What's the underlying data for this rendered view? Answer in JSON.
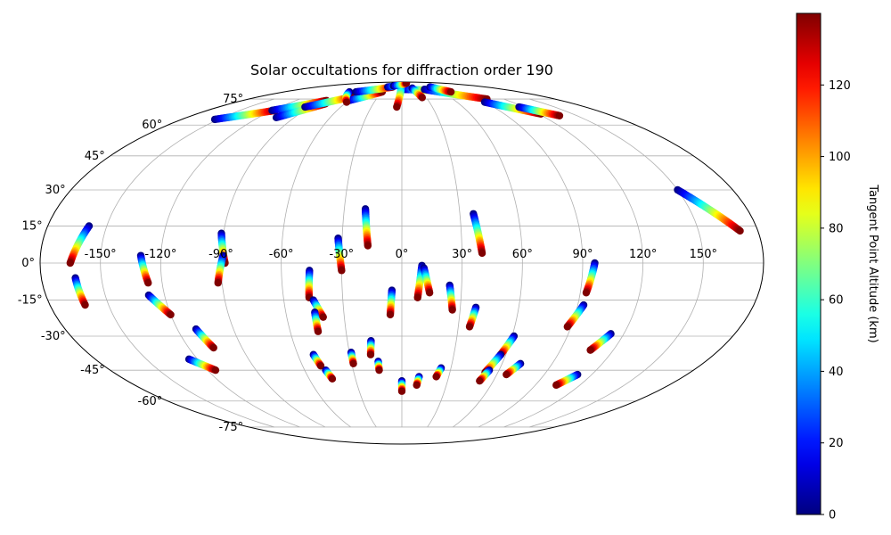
{
  "chart_data": {
    "type": "scatter",
    "projection": "mollweide",
    "title": "Solar occultations for diffraction order 190",
    "grid": true,
    "longitude_ticks": [
      {
        "value": -150,
        "label": "-150°"
      },
      {
        "value": -120,
        "label": "-120°"
      },
      {
        "value": -90,
        "label": "-90°"
      },
      {
        "value": -60,
        "label": "-60°"
      },
      {
        "value": -30,
        "label": "-30°"
      },
      {
        "value": 0,
        "label": "0°"
      },
      {
        "value": 30,
        "label": "30°"
      },
      {
        "value": 60,
        "label": "60°"
      },
      {
        "value": 90,
        "label": "90°"
      },
      {
        "value": 120,
        "label": "120°"
      },
      {
        "value": 150,
        "label": "150°"
      }
    ],
    "latitude_ticks": [
      {
        "value": 75,
        "label": "75°"
      },
      {
        "value": 60,
        "label": "60°"
      },
      {
        "value": 45,
        "label": "45°"
      },
      {
        "value": 30,
        "label": "30°"
      },
      {
        "value": 15,
        "label": "15°"
      },
      {
        "value": 0,
        "label": "0°"
      },
      {
        "value": -15,
        "label": "-15°"
      },
      {
        "value": -30,
        "label": "-30°"
      },
      {
        "value": -45,
        "label": "-45°"
      },
      {
        "value": -60,
        "label": "-60°"
      },
      {
        "value": -75,
        "label": "-75°"
      }
    ],
    "colorbar": {
      "label": "Tangent Point Altitude (km)",
      "colormap": "jet",
      "range": [
        0,
        140
      ],
      "ticks": [
        {
          "value": 0,
          "label": "0"
        },
        {
          "value": 20,
          "label": "20"
        },
        {
          "value": 40,
          "label": "40"
        },
        {
          "value": 60,
          "label": "60"
        },
        {
          "value": 80,
          "label": "80"
        },
        {
          "value": 100,
          "label": "100"
        },
        {
          "value": 120,
          "label": "120"
        }
      ]
    },
    "tracks": [
      {
        "start": [
          -159,
          15
        ],
        "end": [
          -165,
          0
        ]
      },
      {
        "start": [
          -163,
          -6
        ],
        "end": [
          -162,
          -17
        ]
      },
      {
        "start": [
          -130,
          3
        ],
        "end": [
          -127,
          -8
        ]
      },
      {
        "start": [
          -128,
          -13
        ],
        "end": [
          -120,
          -21
        ]
      },
      {
        "start": [
          -110,
          -27
        ],
        "end": [
          -106,
          -35
        ]
      },
      {
        "start": [
          -125,
          -40
        ],
        "end": [
          -115,
          -45
        ]
      },
      {
        "start": [
          -91,
          12
        ],
        "end": [
          -88,
          0
        ]
      },
      {
        "start": [
          -89,
          3
        ],
        "end": [
          -92,
          -8
        ]
      },
      {
        "start": [
          -32,
          10
        ],
        "end": [
          -30,
          -3
        ]
      },
      {
        "start": [
          -19,
          22
        ],
        "end": [
          -17,
          7
        ]
      },
      {
        "start": [
          -46,
          -3
        ],
        "end": [
          -47,
          -14
        ]
      },
      {
        "start": [
          -45,
          -15
        ],
        "end": [
          -41,
          -22
        ]
      },
      {
        "start": [
          -45,
          -20
        ],
        "end": [
          -45,
          -28
        ]
      },
      {
        "start": [
          -51,
          -38
        ],
        "end": [
          -49,
          -43
        ]
      },
      {
        "start": [
          -47,
          -45
        ],
        "end": [
          -45,
          -49
        ]
      },
      {
        "start": [
          -29,
          -37
        ],
        "end": [
          -29,
          -42
        ]
      },
      {
        "start": [
          -17,
          -32
        ],
        "end": [
          -18,
          -38
        ]
      },
      {
        "start": [
          -14,
          -41
        ],
        "end": [
          -14,
          -45
        ]
      },
      {
        "start": [
          -5,
          -11
        ],
        "end": [
          -6,
          -21
        ]
      },
      {
        "start": [
          0,
          -50
        ],
        "end": [
          0,
          -55
        ]
      },
      {
        "start": [
          10,
          -1
        ],
        "end": [
          8,
          -14
        ]
      },
      {
        "start": [
          11,
          -2
        ],
        "end": [
          14,
          -12
        ]
      },
      {
        "start": [
          11,
          -48
        ],
        "end": [
          10,
          -52
        ]
      },
      {
        "start": [
          24,
          -9
        ],
        "end": [
          26,
          -19
        ]
      },
      {
        "start": [
          24,
          -44
        ],
        "end": [
          22,
          -48
        ]
      },
      {
        "start": [
          37,
          20
        ],
        "end": [
          40,
          4
        ]
      },
      {
        "start": [
          38,
          -18
        ],
        "end": [
          36,
          -26
        ]
      },
      {
        "start": [
          61,
          -30
        ],
        "end": [
          57,
          -38
        ]
      },
      {
        "start": [
          57,
          -38
        ],
        "end": [
          52,
          -46
        ]
      },
      {
        "start": [
          54,
          -45
        ],
        "end": [
          51,
          -50
        ]
      },
      {
        "start": [
          71,
          -42
        ],
        "end": [
          66,
          -47
        ]
      },
      {
        "start": [
          96,
          0
        ],
        "end": [
          93,
          -12
        ]
      },
      {
        "start": [
          93,
          -17
        ],
        "end": [
          88,
          -26
        ]
      },
      {
        "start": [
          113,
          -29
        ],
        "end": [
          107,
          -36
        ]
      },
      {
        "start": [
          111,
          -47
        ],
        "end": [
          104,
          -52
        ]
      },
      {
        "start": [
          150,
          30
        ],
        "end": [
          171,
          13
        ]
      },
      {
        "start": [
          -153,
          63
        ],
        "end": [
          -117,
          68
        ]
      },
      {
        "start": [
          -120,
          68
        ],
        "end": [
          -85,
          74
        ]
      },
      {
        "start": [
          -105,
          64
        ],
        "end": [
          -80,
          72
        ]
      },
      {
        "start": [
          -95,
          70
        ],
        "end": [
          -60,
          77
        ]
      },
      {
        "start": [
          -60,
          74
        ],
        "end": [
          -30,
          80
        ]
      },
      {
        "start": [
          -70,
          80
        ],
        "end": [
          -20,
          84
        ]
      },
      {
        "start": [
          -30,
          84
        ],
        "end": [
          10,
          87
        ]
      },
      {
        "start": [
          5,
          82
        ],
        "end": [
          60,
          81
        ]
      },
      {
        "start": [
          40,
          82
        ],
        "end": [
          100,
          75
        ]
      },
      {
        "start": [
          90,
          73
        ],
        "end": [
          122,
          66
        ]
      },
      {
        "start": [
          115,
          70
        ],
        "end": [
          135,
          65
        ]
      },
      {
        "start": [
          -80,
          80
        ],
        "end": [
          -60,
          73
        ]
      },
      {
        "start": [
          0,
          86
        ],
        "end": [
          -5,
          70
        ]
      },
      {
        "start": [
          20,
          83
        ],
        "end": [
          25,
          76
        ]
      },
      {
        "start": [
          60,
          84
        ],
        "end": [
          75,
          80
        ]
      },
      {
        "start": [
          -20,
          85
        ],
        "end": [
          20,
          88
        ]
      }
    ]
  }
}
